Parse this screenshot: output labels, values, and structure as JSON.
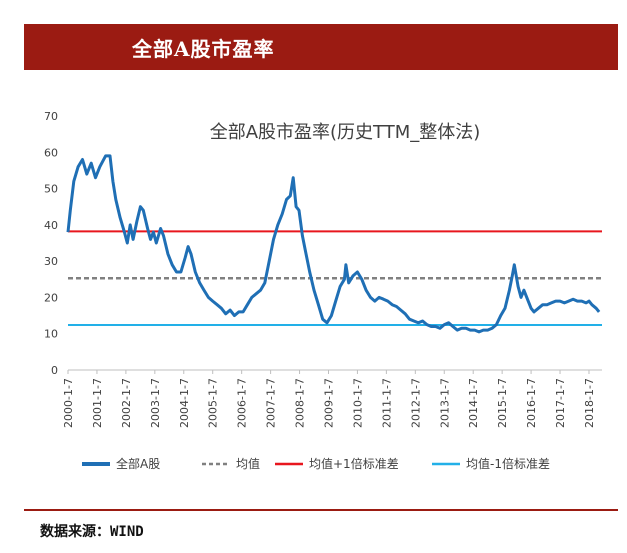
{
  "header": {
    "title": "全部A股市盈率"
  },
  "footer": {
    "source": "数据来源：WIND"
  },
  "chart_data": {
    "type": "line",
    "title": "全部A股市盈率(历史TTM_整体法)",
    "xlabel": "",
    "ylabel": "",
    "ylim": [
      0,
      70
    ],
    "yticks": [
      "0",
      "10",
      "20",
      "30",
      "40",
      "50",
      "60",
      "70"
    ],
    "xticks": [
      "2000-1-7",
      "2001-1-7",
      "2002-1-7",
      "2003-1-7",
      "2004-1-7",
      "2005-1-7",
      "2006-1-7",
      "2007-1-7",
      "2008-1-7",
      "2009-1-7",
      "2010-1-7",
      "2011-1-7",
      "2012-1-7",
      "2013-1-7",
      "2014-1-7",
      "2015-1-7",
      "2016-1-7",
      "2017-1-7",
      "2018-1-7"
    ],
    "grid": false,
    "legend_position": "bottom",
    "series": [
      {
        "name": "全部A股",
        "color": "#1f6fb5",
        "style": "solid",
        "points": [
          [
            2000.0,
            38
          ],
          [
            2000.08,
            44
          ],
          [
            2000.2,
            52
          ],
          [
            2000.35,
            56
          ],
          [
            2000.5,
            58
          ],
          [
            2000.65,
            54
          ],
          [
            2000.8,
            57
          ],
          [
            2000.95,
            53
          ],
          [
            2001.1,
            56
          ],
          [
            2001.3,
            59
          ],
          [
            2001.45,
            59
          ],
          [
            2001.55,
            52
          ],
          [
            2001.65,
            47
          ],
          [
            2001.8,
            42
          ],
          [
            2001.95,
            38
          ],
          [
            2002.05,
            35
          ],
          [
            2002.15,
            40
          ],
          [
            2002.25,
            36
          ],
          [
            2002.38,
            41
          ],
          [
            2002.5,
            45
          ],
          [
            2002.6,
            44
          ],
          [
            2002.75,
            39
          ],
          [
            2002.85,
            36
          ],
          [
            2002.95,
            38
          ],
          [
            2003.05,
            35
          ],
          [
            2003.2,
            39
          ],
          [
            2003.3,
            37
          ],
          [
            2003.45,
            32
          ],
          [
            2003.6,
            29
          ],
          [
            2003.75,
            27
          ],
          [
            2003.9,
            27
          ],
          [
            2004.05,
            31
          ],
          [
            2004.15,
            34
          ],
          [
            2004.25,
            32
          ],
          [
            2004.4,
            27
          ],
          [
            2004.55,
            24
          ],
          [
            2004.7,
            22
          ],
          [
            2004.85,
            20
          ],
          [
            2005.0,
            19
          ],
          [
            2005.15,
            18
          ],
          [
            2005.3,
            17
          ],
          [
            2005.45,
            15.5
          ],
          [
            2005.6,
            16.5
          ],
          [
            2005.75,
            15
          ],
          [
            2005.9,
            16
          ],
          [
            2006.05,
            16
          ],
          [
            2006.2,
            18
          ],
          [
            2006.35,
            20
          ],
          [
            2006.5,
            21
          ],
          [
            2006.65,
            22
          ],
          [
            2006.8,
            24
          ],
          [
            2006.95,
            30
          ],
          [
            2007.1,
            36
          ],
          [
            2007.25,
            40
          ],
          [
            2007.4,
            43
          ],
          [
            2007.55,
            47
          ],
          [
            2007.68,
            48
          ],
          [
            2007.78,
            53
          ],
          [
            2007.88,
            45
          ],
          [
            2007.98,
            44
          ],
          [
            2008.1,
            37
          ],
          [
            2008.2,
            33
          ],
          [
            2008.35,
            27
          ],
          [
            2008.5,
            22
          ],
          [
            2008.65,
            18
          ],
          [
            2008.8,
            14
          ],
          [
            2008.95,
            13
          ],
          [
            2009.1,
            15
          ],
          [
            2009.25,
            19
          ],
          [
            2009.4,
            23
          ],
          [
            2009.55,
            25
          ],
          [
            2009.6,
            29
          ],
          [
            2009.7,
            24
          ],
          [
            2009.85,
            26
          ],
          [
            2010.0,
            27
          ],
          [
            2010.15,
            25
          ],
          [
            2010.3,
            22
          ],
          [
            2010.45,
            20
          ],
          [
            2010.6,
            19
          ],
          [
            2010.75,
            20
          ],
          [
            2010.9,
            19.5
          ],
          [
            2011.05,
            19
          ],
          [
            2011.2,
            18
          ],
          [
            2011.35,
            17.5
          ],
          [
            2011.5,
            16.5
          ],
          [
            2011.65,
            15.5
          ],
          [
            2011.8,
            14
          ],
          [
            2011.95,
            13.5
          ],
          [
            2012.1,
            13
          ],
          [
            2012.25,
            13.5
          ],
          [
            2012.4,
            12.5
          ],
          [
            2012.55,
            12
          ],
          [
            2012.7,
            12
          ],
          [
            2012.85,
            11.5
          ],
          [
            2013.0,
            12.5
          ],
          [
            2013.15,
            13
          ],
          [
            2013.3,
            12
          ],
          [
            2013.45,
            11
          ],
          [
            2013.6,
            11.5
          ],
          [
            2013.75,
            11.5
          ],
          [
            2013.9,
            11
          ],
          [
            2014.05,
            11
          ],
          [
            2014.2,
            10.5
          ],
          [
            2014.35,
            11
          ],
          [
            2014.5,
            11
          ],
          [
            2014.65,
            11.5
          ],
          [
            2014.8,
            12.5
          ],
          [
            2014.95,
            15
          ],
          [
            2015.1,
            17
          ],
          [
            2015.25,
            22
          ],
          [
            2015.35,
            26
          ],
          [
            2015.42,
            29
          ],
          [
            2015.55,
            23
          ],
          [
            2015.65,
            20
          ],
          [
            2015.75,
            22
          ],
          [
            2015.9,
            19
          ],
          [
            2016.0,
            17
          ],
          [
            2016.1,
            16
          ],
          [
            2016.25,
            17
          ],
          [
            2016.4,
            18
          ],
          [
            2016.55,
            18
          ],
          [
            2016.7,
            18.5
          ],
          [
            2016.85,
            19
          ],
          [
            2017.0,
            19
          ],
          [
            2017.15,
            18.5
          ],
          [
            2017.3,
            19
          ],
          [
            2017.45,
            19.5
          ],
          [
            2017.6,
            19
          ],
          [
            2017.75,
            19
          ],
          [
            2017.9,
            18.5
          ],
          [
            2018.0,
            19
          ],
          [
            2018.1,
            18
          ],
          [
            2018.25,
            17
          ],
          [
            2018.35,
            16
          ]
        ]
      },
      {
        "name": "均值",
        "color": "#808080",
        "style": "dashed",
        "constant": 25.3
      },
      {
        "name": "均值+1倍标准差",
        "color": "#e8161e",
        "style": "solid",
        "constant": 38.2
      },
      {
        "name": "均值-1倍标准差",
        "color": "#22b0e8",
        "style": "solid",
        "constant": 12.4
      }
    ]
  }
}
